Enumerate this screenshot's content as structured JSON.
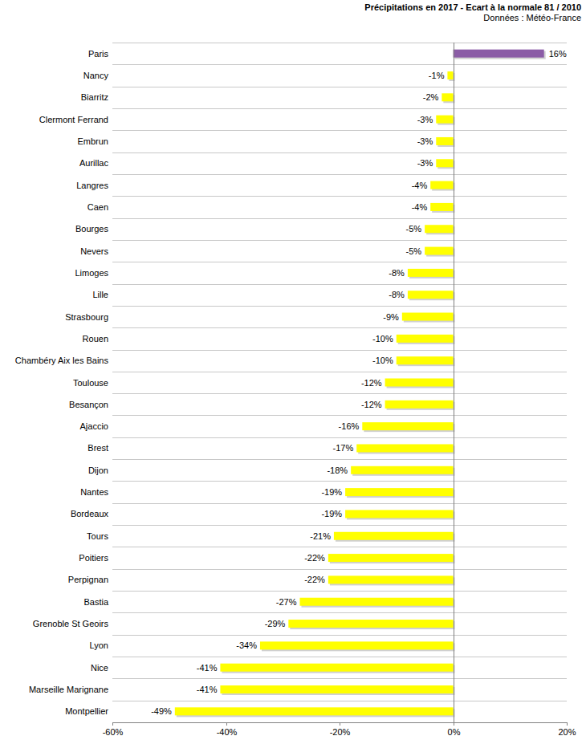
{
  "chart_data": {
    "type": "bar",
    "orientation": "horizontal",
    "title": "Précipitations en 2017 - Ecart à la normale 81 / 2010",
    "subtitle": "Données : Météo-France",
    "categories": [
      "Paris",
      "Nancy",
      "Biarritz",
      "Clermont Ferrand",
      "Embrun",
      "Aurillac",
      "Langres",
      "Caen",
      "Bourges",
      "Nevers",
      "Limoges",
      "Lille",
      "Strasbourg",
      "Rouen",
      "Chambéry Aix les Bains",
      "Toulouse",
      "Besançon",
      "Ajaccio",
      "Brest",
      "Dijon",
      "Nantes",
      "Bordeaux",
      "Tours",
      "Poitiers",
      "Perpignan",
      "Bastia",
      "Grenoble St Geoirs",
      "Lyon",
      "Nice",
      "Marseille Marignane",
      "Montpellier"
    ],
    "values": [
      16,
      -1,
      -2,
      -3,
      -3,
      -3,
      -4,
      -4,
      -5,
      -5,
      -8,
      -8,
      -9,
      -10,
      -10,
      -12,
      -12,
      -16,
      -17,
      -18,
      -19,
      -19,
      -21,
      -22,
      -22,
      -27,
      -29,
      -34,
      -41,
      -41,
      -49
    ],
    "value_labels": [
      "16%",
      "-1%",
      "-2%",
      "-3%",
      "-3%",
      "-3%",
      "-4%",
      "-4%",
      "-5%",
      "-5%",
      "-8%",
      "-8%",
      "-9%",
      "-10%",
      "-10%",
      "-12%",
      "-12%",
      "-16%",
      "-17%",
      "-18%",
      "-19%",
      "-19%",
      "-21%",
      "-22%",
      "-22%",
      "-27%",
      "-29%",
      "-34%",
      "-41%",
      "-41%",
      "-49%"
    ],
    "colors": [
      "#8b5ca6",
      "#ffff00",
      "#ffff00",
      "#ffff00",
      "#ffff00",
      "#ffff00",
      "#ffff00",
      "#ffff00",
      "#ffff00",
      "#ffff00",
      "#ffff00",
      "#ffff00",
      "#ffff00",
      "#ffff00",
      "#ffff00",
      "#ffff00",
      "#ffff00",
      "#ffff00",
      "#ffff00",
      "#ffff00",
      "#ffff00",
      "#ffff00",
      "#ffff00",
      "#ffff00",
      "#ffff00",
      "#ffff00",
      "#ffff00",
      "#ffff00",
      "#ffff00",
      "#ffff00",
      "#ffff00"
    ],
    "xlim": [
      -60,
      20
    ],
    "xticks": [
      {
        "value": -60,
        "label": "-60%"
      },
      {
        "value": -40,
        "label": "-40%"
      },
      {
        "value": -20,
        "label": "-20%"
      },
      {
        "value": 0,
        "label": "0%"
      },
      {
        "value": 20,
        "label": "20%"
      }
    ],
    "grid": false,
    "data_labels": true
  }
}
